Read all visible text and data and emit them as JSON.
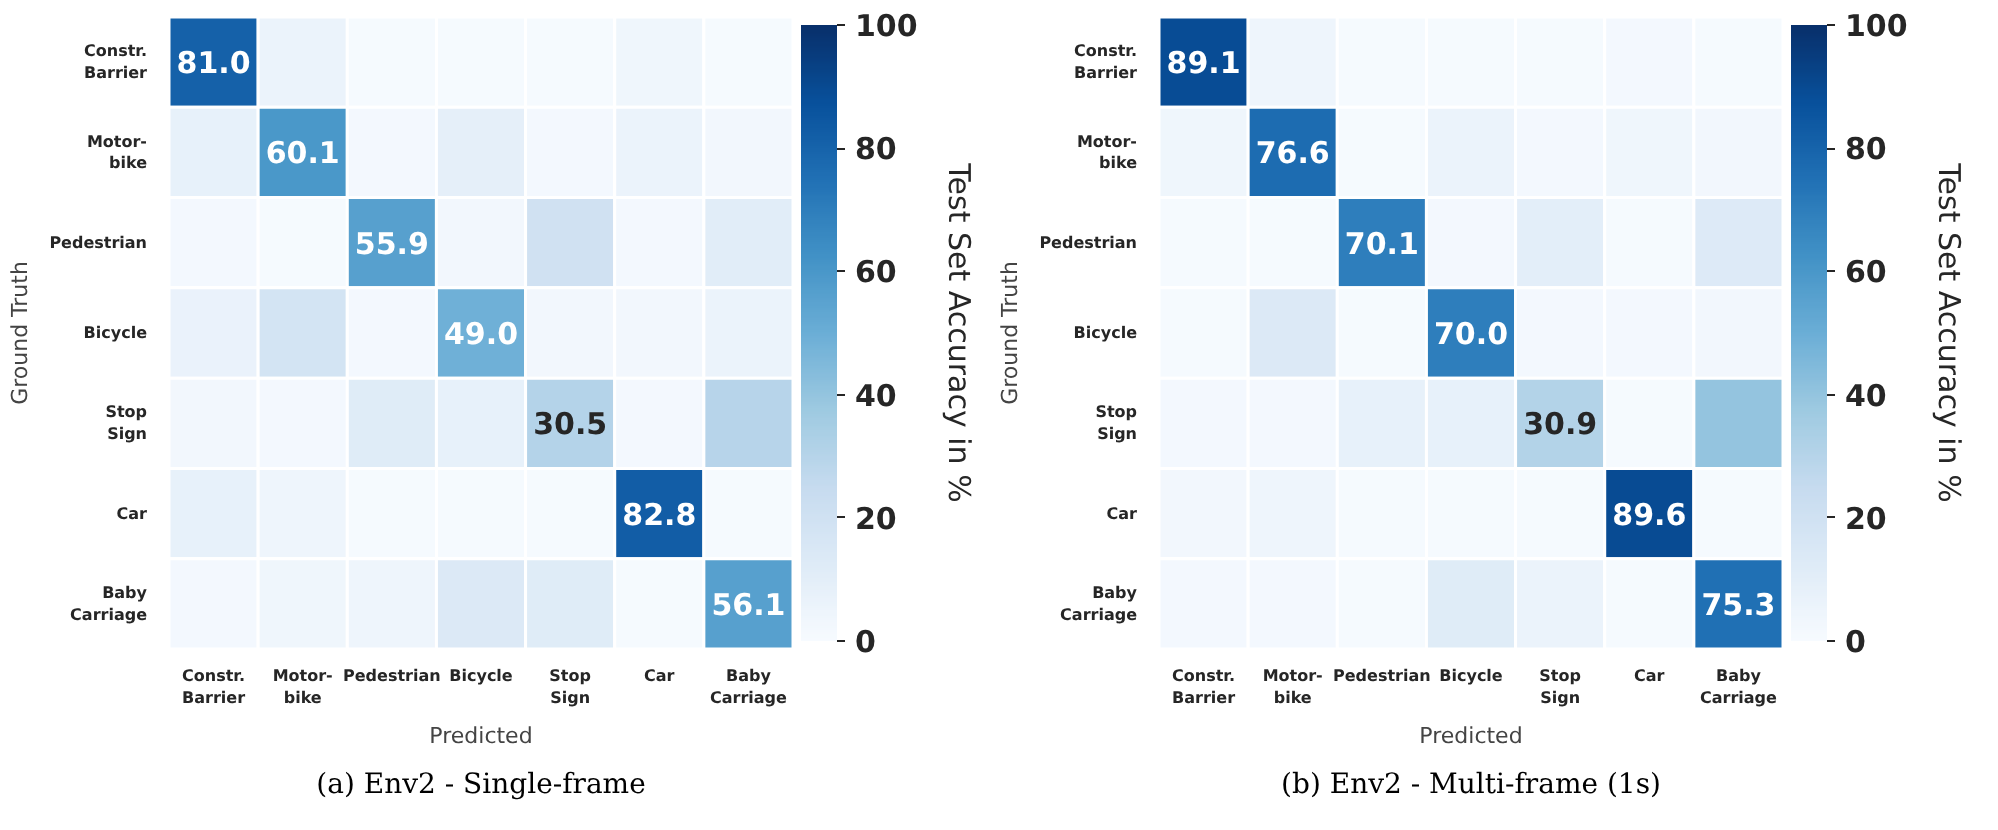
{
  "chart_data": [
    {
      "type": "heatmap",
      "xlabel": "Predicted",
      "ylabel": "Ground Truth",
      "clabel": "Test Set Accuracy in %",
      "categories": [
        "Constr.\nBarrier",
        "Motor-\nbike",
        "Pedestrian",
        "Bicycle",
        "Stop\nSign",
        "Car",
        "Baby\nCarriage"
      ],
      "y_categories": [
        "Constr.\nBarrier",
        "Motor-\nbike",
        "Pedestrian",
        "Bicycle",
        "Stop\nSign",
        "Car",
        "Baby\nCarriage"
      ],
      "cells": [
        [
          81.0,
          6,
          1,
          1,
          1,
          4,
          1
        ],
        [
          8,
          60.1,
          2,
          9,
          2,
          6,
          3
        ],
        [
          2,
          1,
          55.9,
          3,
          20,
          2,
          11
        ],
        [
          7,
          18,
          2,
          49.0,
          3,
          3,
          6
        ],
        [
          3,
          2,
          12,
          8,
          30.5,
          2,
          30
        ],
        [
          8,
          5,
          1,
          1,
          1,
          82.8,
          1
        ],
        [
          2,
          4,
          5,
          14,
          12,
          1,
          56.1
        ]
      ],
      "cell_labels": [
        [
          "81.0",
          null,
          null,
          null,
          null,
          null,
          null
        ],
        [
          null,
          "60.1",
          null,
          null,
          null,
          null,
          null
        ],
        [
          null,
          null,
          "55.9",
          null,
          null,
          null,
          null
        ],
        [
          null,
          null,
          null,
          "49.0",
          null,
          null,
          null
        ],
        [
          null,
          null,
          null,
          null,
          "30.5",
          null,
          null
        ],
        [
          null,
          null,
          null,
          null,
          null,
          "82.8",
          null
        ],
        [
          null,
          null,
          null,
          null,
          null,
          null,
          "56.1"
        ]
      ],
      "clim": [
        0,
        100
      ],
      "cticks": [
        0,
        20,
        40,
        60,
        80,
        100
      ],
      "annotations": [
        "(a) Env2 - Single-frame"
      ]
    },
    {
      "type": "heatmap",
      "xlabel": "Predicted",
      "ylabel": "Ground Truth",
      "clabel": "Test Set Accuracy in %",
      "categories": [
        "Constr.\nBarrier",
        "Motor-\nbike",
        "Pedestrian",
        "Bicycle",
        "Stop\nSign",
        "Car",
        "Baby\nCarriage"
      ],
      "y_categories": [
        "Constr.\nBarrier",
        "Motor-\nbike",
        "Pedestrian",
        "Bicycle",
        "Stop\nSign",
        "Car",
        "Baby\nCarriage"
      ],
      "cells": [
        [
          89.1,
          5,
          1,
          1,
          1,
          2,
          1
        ],
        [
          4,
          76.6,
          1,
          6,
          2,
          4,
          3
        ],
        [
          1,
          1,
          70.1,
          2,
          10,
          1,
          13
        ],
        [
          1,
          14,
          1,
          70.0,
          2,
          2,
          3
        ],
        [
          2,
          2,
          8,
          8,
          30.9,
          1,
          40
        ],
        [
          3,
          5,
          1,
          1,
          1,
          89.6,
          1
        ],
        [
          2,
          2,
          1,
          12,
          6,
          1,
          75.3
        ]
      ],
      "cell_labels": [
        [
          "89.1",
          null,
          null,
          null,
          null,
          null,
          null
        ],
        [
          null,
          "76.6",
          null,
          null,
          null,
          null,
          null
        ],
        [
          null,
          null,
          "70.1",
          null,
          null,
          null,
          null
        ],
        [
          null,
          null,
          null,
          "70.0",
          null,
          null,
          null
        ],
        [
          null,
          null,
          null,
          null,
          "30.9",
          null,
          null
        ],
        [
          null,
          null,
          null,
          null,
          null,
          "89.6",
          null
        ],
        [
          null,
          null,
          null,
          null,
          null,
          null,
          "75.3"
        ]
      ],
      "clim": [
        0,
        100
      ],
      "cticks": [
        0,
        20,
        40,
        60,
        80,
        100
      ],
      "annotations": [
        "(b) Env2 - Multi-frame (1s)"
      ]
    }
  ]
}
